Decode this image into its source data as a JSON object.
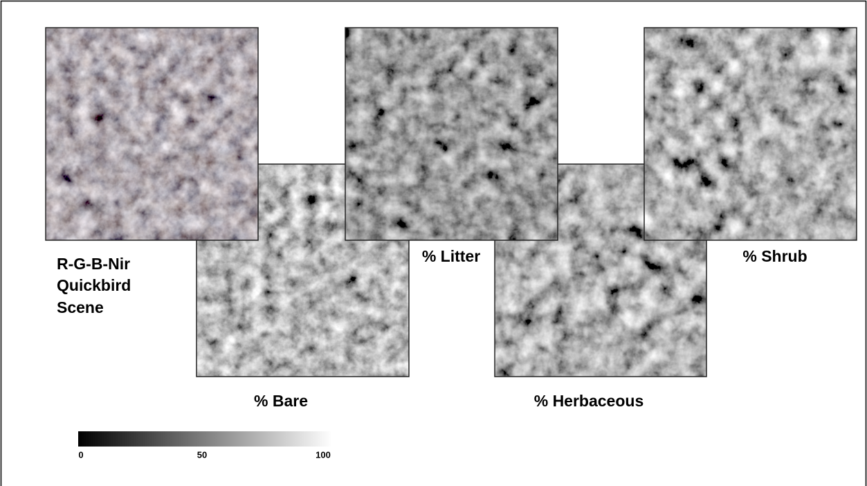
{
  "panels": [
    {
      "label_lines": [
        "R-G-B-Nir",
        "Quickbird",
        "Scene"
      ]
    },
    {
      "label": "% Bare"
    },
    {
      "label": "% Litter"
    },
    {
      "label": "% Herbaceous"
    },
    {
      "label": "% Shrub"
    }
  ],
  "colorbar": {
    "lim": [
      0,
      100
    ],
    "ticks": [
      0,
      50,
      100
    ]
  }
}
